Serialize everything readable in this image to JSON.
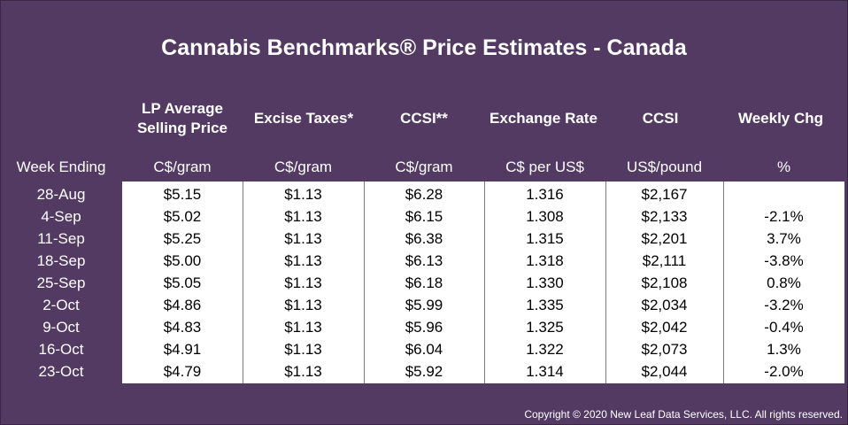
{
  "title": "Cannabis Benchmarks® Price Estimates - Canada",
  "headers": [
    "LP Average Selling Price",
    "Excise Taxes*",
    "CCSI**",
    "Exchange Rate",
    "CCSI",
    "Weekly Chg"
  ],
  "row_header_label": "Week Ending",
  "units": [
    "C$/gram",
    "C$/gram",
    "C$/gram",
    "C$ per US$",
    "US$/pound",
    "%"
  ],
  "rows": [
    {
      "week": "28-Aug",
      "lp": "$5.15",
      "excise": "$1.13",
      "ccsi_cad": "$6.28",
      "fx": "1.316",
      "ccsi_usd": "$2,167",
      "chg": ""
    },
    {
      "week": "4-Sep",
      "lp": "$5.02",
      "excise": "$1.13",
      "ccsi_cad": "$6.15",
      "fx": "1.308",
      "ccsi_usd": "$2,133",
      "chg": "-2.1%"
    },
    {
      "week": "11-Sep",
      "lp": "$5.25",
      "excise": "$1.13",
      "ccsi_cad": "$6.38",
      "fx": "1.315",
      "ccsi_usd": "$2,201",
      "chg": "3.7%"
    },
    {
      "week": "18-Sep",
      "lp": "$5.00",
      "excise": "$1.13",
      "ccsi_cad": "$6.13",
      "fx": "1.318",
      "ccsi_usd": "$2,111",
      "chg": "-3.8%"
    },
    {
      "week": "25-Sep",
      "lp": "$5.05",
      "excise": "$1.13",
      "ccsi_cad": "$6.18",
      "fx": "1.330",
      "ccsi_usd": "$2,108",
      "chg": "0.8%"
    },
    {
      "week": "2-Oct",
      "lp": "$4.86",
      "excise": "$1.13",
      "ccsi_cad": "$5.99",
      "fx": "1.335",
      "ccsi_usd": "$2,034",
      "chg": "-3.2%"
    },
    {
      "week": "9-Oct",
      "lp": "$4.83",
      "excise": "$1.13",
      "ccsi_cad": "$5.96",
      "fx": "1.325",
      "ccsi_usd": "$2,042",
      "chg": "-0.4%"
    },
    {
      "week": "16-Oct",
      "lp": "$4.91",
      "excise": "$1.13",
      "ccsi_cad": "$6.04",
      "fx": "1.322",
      "ccsi_usd": "$2,073",
      "chg": "1.3%"
    },
    {
      "week": "23-Oct",
      "lp": "$4.79",
      "excise": "$1.13",
      "ccsi_cad": "$5.92",
      "fx": "1.314",
      "ccsi_usd": "$2,044",
      "chg": "-2.0%"
    }
  ],
  "copyright": "Copyright © 2020 New Leaf Data Services, LLC. All rights reserved.",
  "colors": {
    "background": "#533a63",
    "table_bg": "#ffffff",
    "text_light": "#ffffff",
    "text_dark": "#000000"
  }
}
